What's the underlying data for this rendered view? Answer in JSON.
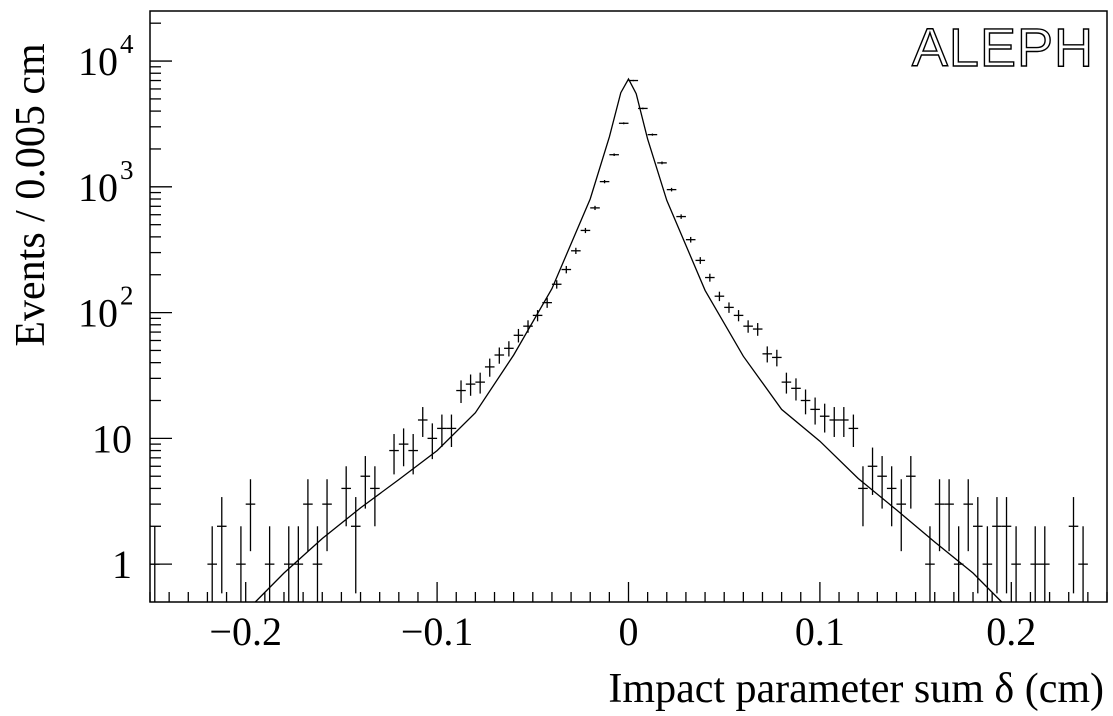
{
  "chart_data": {
    "type": "scatter",
    "title": "",
    "logo": "ALEPH",
    "xlabel": "Impact parameter sum δ  (cm)",
    "ylabel": "Events / 0.005 cm",
    "xlim": [
      -0.25,
      0.25
    ],
    "ylim": [
      0.5,
      25000
    ],
    "yscale": "log",
    "grid": false,
    "legend": "none",
    "bin_width": 0.005,
    "x_ticks": [
      {
        "value": -0.2,
        "label": "−0.2"
      },
      {
        "value": -0.1,
        "label": "−0.1"
      },
      {
        "value": 0,
        "label": "0"
      },
      {
        "value": 0.1,
        "label": "0.1"
      },
      {
        "value": 0.2,
        "label": "0.2"
      }
    ],
    "y_ticks": [
      {
        "value": 1,
        "base": "1",
        "exp": ""
      },
      {
        "value": 10,
        "base": "10",
        "exp": ""
      },
      {
        "value": 100,
        "base": "10",
        "exp": "2"
      },
      {
        "value": 1000,
        "base": "10",
        "exp": "3"
      },
      {
        "value": 10000,
        "base": "10",
        "exp": "4"
      }
    ],
    "series": [
      {
        "kind": "data points with error bars",
        "points": [
          [
            -0.2475,
            1
          ],
          [
            -0.2175,
            1
          ],
          [
            -0.2125,
            2
          ],
          [
            -0.2025,
            1
          ],
          [
            -0.1975,
            3
          ],
          [
            -0.1875,
            1
          ],
          [
            -0.1775,
            1
          ],
          [
            -0.1725,
            1
          ],
          [
            -0.1675,
            3
          ],
          [
            -0.1625,
            1
          ],
          [
            -0.1575,
            3
          ],
          [
            -0.1475,
            4
          ],
          [
            -0.1425,
            2
          ],
          [
            -0.1375,
            5
          ],
          [
            -0.1325,
            4
          ],
          [
            -0.1225,
            8
          ],
          [
            -0.1175,
            9
          ],
          [
            -0.1125,
            8
          ],
          [
            -0.1075,
            14
          ],
          [
            -0.1025,
            10
          ],
          [
            -0.0975,
            12
          ],
          [
            -0.0925,
            12
          ],
          [
            -0.0875,
            24
          ],
          [
            -0.0825,
            27
          ],
          [
            -0.0775,
            28
          ],
          [
            -0.0725,
            37
          ],
          [
            -0.0675,
            46
          ],
          [
            -0.0625,
            52
          ],
          [
            -0.0575,
            66
          ],
          [
            -0.0525,
            78
          ],
          [
            -0.0475,
            95
          ],
          [
            -0.0425,
            120
          ],
          [
            -0.0375,
            168
          ],
          [
            -0.0325,
            220
          ],
          [
            -0.0275,
            310
          ],
          [
            -0.0225,
            450
          ],
          [
            -0.0175,
            680
          ],
          [
            -0.0125,
            1100
          ],
          [
            -0.0075,
            1800
          ],
          [
            -0.0025,
            3200
          ],
          [
            0.0025,
            7000
          ],
          [
            0.0075,
            4200
          ],
          [
            0.0125,
            2600
          ],
          [
            0.0175,
            1550
          ],
          [
            0.0225,
            950
          ],
          [
            0.0275,
            580
          ],
          [
            0.0325,
            380
          ],
          [
            0.0375,
            260
          ],
          [
            0.0425,
            190
          ],
          [
            0.0475,
            135
          ],
          [
            0.0525,
            110
          ],
          [
            0.0575,
            95
          ],
          [
            0.0625,
            78
          ],
          [
            0.0675,
            74
          ],
          [
            0.0725,
            47
          ],
          [
            0.0775,
            44
          ],
          [
            0.0825,
            28
          ],
          [
            0.0875,
            25
          ],
          [
            0.0925,
            20
          ],
          [
            0.0975,
            17
          ],
          [
            0.1025,
            15
          ],
          [
            0.1075,
            14
          ],
          [
            0.1125,
            14
          ],
          [
            0.1175,
            12
          ],
          [
            0.1225,
            4
          ],
          [
            0.1275,
            6
          ],
          [
            0.1325,
            5
          ],
          [
            0.1375,
            4
          ],
          [
            0.1425,
            3
          ],
          [
            0.1475,
            5
          ],
          [
            0.1575,
            1
          ],
          [
            0.1625,
            3
          ],
          [
            0.1675,
            3
          ],
          [
            0.1725,
            1
          ],
          [
            0.1775,
            3
          ],
          [
            0.1825,
            2
          ],
          [
            0.1875,
            1
          ],
          [
            0.1925,
            2
          ],
          [
            0.1975,
            2
          ],
          [
            0.2025,
            1
          ],
          [
            0.2125,
            1
          ],
          [
            0.2175,
            1
          ],
          [
            0.2325,
            2
          ],
          [
            0.2375,
            1
          ]
        ]
      },
      {
        "kind": "fit curve",
        "points": [
          [
            -0.195,
            0.5
          ],
          [
            -0.18,
            0.85
          ],
          [
            -0.16,
            1.6
          ],
          [
            -0.14,
            2.8
          ],
          [
            -0.12,
            4.7
          ],
          [
            -0.1,
            8
          ],
          [
            -0.08,
            16
          ],
          [
            -0.06,
            46
          ],
          [
            -0.04,
            155
          ],
          [
            -0.02,
            800
          ],
          [
            -0.01,
            2500
          ],
          [
            -0.004,
            5600
          ],
          [
            0,
            7200
          ],
          [
            0.004,
            5500
          ],
          [
            0.01,
            2400
          ],
          [
            0.02,
            780
          ],
          [
            0.04,
            150
          ],
          [
            0.06,
            45
          ],
          [
            0.08,
            17
          ],
          [
            0.1,
            9.5
          ],
          [
            0.12,
            4.8
          ],
          [
            0.14,
            2.7
          ],
          [
            0.16,
            1.5
          ],
          [
            0.18,
            0.85
          ],
          [
            0.195,
            0.5
          ]
        ]
      }
    ]
  }
}
